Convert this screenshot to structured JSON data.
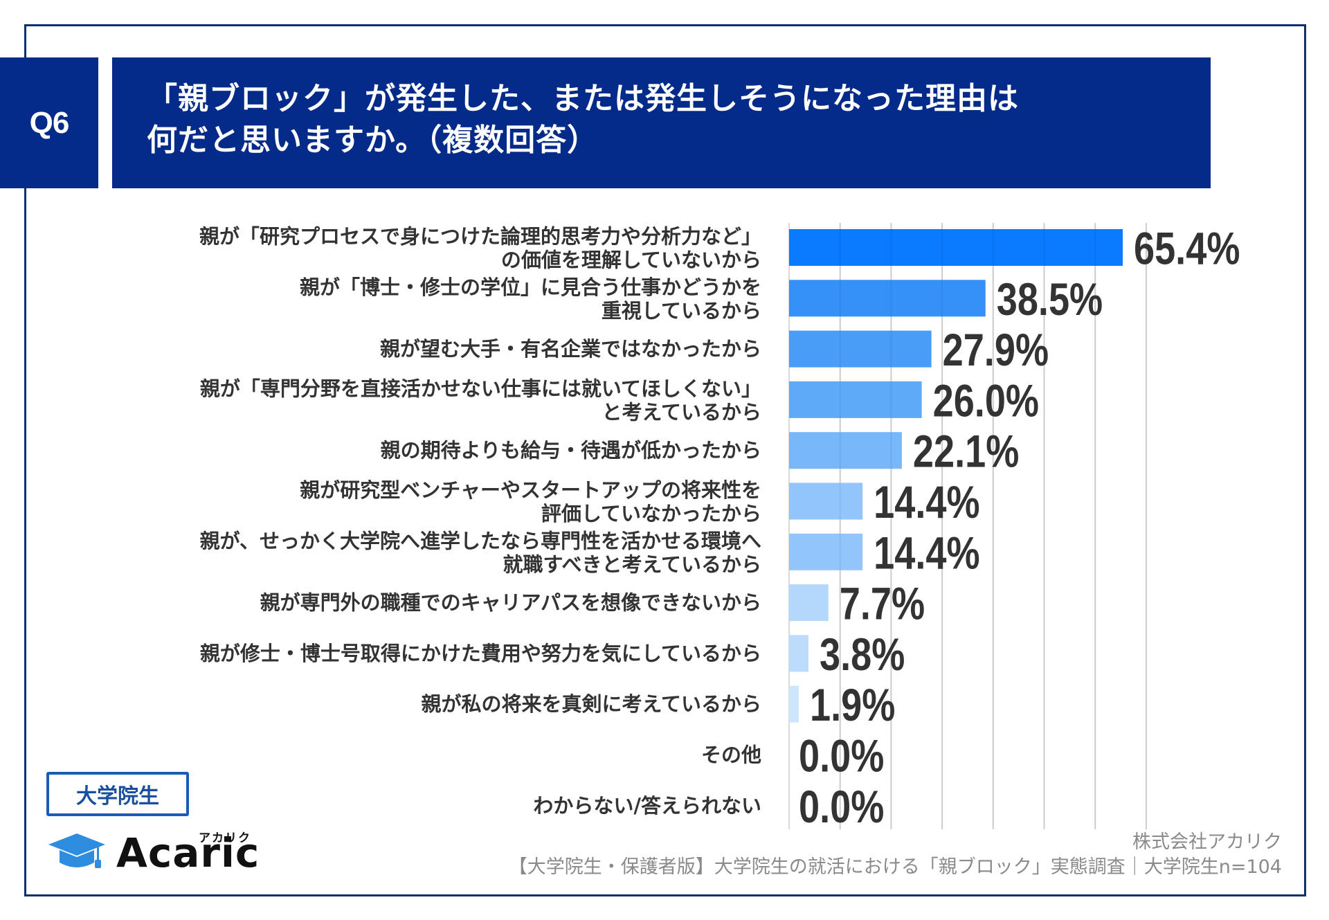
{
  "header": {
    "question_number": "Q6",
    "title_line1": "「親ブロック」が発生した、または発生しそうになった理由は",
    "title_line2": "何だと思いますか。（複数回答）"
  },
  "colors": {
    "header_bg": "#042b8a",
    "frame": "#10306a",
    "gridline": "#d9d9d9",
    "label_text": "#333333",
    "badge": "#1a5bb8",
    "logo_icon": "#2f8de0"
  },
  "chart_data": {
    "type": "bar",
    "orientation": "horizontal",
    "title": "「親ブロック」が発生した、または発生しそうになった理由は何だと思いますか。（複数回答）",
    "xlabel": "",
    "ylabel": "",
    "xlim": [
      0,
      70
    ],
    "grid": true,
    "grid_step": 10,
    "legend": "none",
    "unit": "%",
    "categories": [
      [
        "親が「研究プロセスで身につけた論理的思考力や分析力など」",
        "の価値を理解していないから"
      ],
      [
        "親が「博士・修士の学位」に見合う仕事かどうかを",
        "重視しているから"
      ],
      [
        "親が望む大手・有名企業ではなかったから"
      ],
      [
        "親が「専門分野を直接活かせない仕事には就いてほしくない」",
        "と考えているから"
      ],
      [
        "親の期待よりも給与・待遇が低かったから"
      ],
      [
        "親が研究型ベンチャーやスタートアップの将来性を",
        "評価していなかったから"
      ],
      [
        "親が、せっかく大学院へ進学したなら専門性を活かせる環境へ",
        "就職すべきと考えているから"
      ],
      [
        "親が専門外の職種でのキャリアパスを想像できないから"
      ],
      [
        "親が修士・博士号取得にかけた費用や努力を気にしているから"
      ],
      [
        "親が私の将来を真剣に考えているから"
      ],
      [
        "その他"
      ],
      [
        "わからない/答えられない"
      ]
    ],
    "values": [
      65.4,
      38.5,
      27.9,
      26.0,
      22.1,
      14.4,
      14.4,
      7.7,
      3.8,
      1.9,
      0.0,
      0.0
    ],
    "value_labels": [
      "65.4%",
      "38.5%",
      "27.9%",
      "26.0%",
      "22.1%",
      "14.4%",
      "14.4%",
      "7.7%",
      "3.8%",
      "1.9%",
      "0.0%",
      "0.0%"
    ],
    "bar_colors": [
      "#0a7aff",
      "#3591f7",
      "#4a9df7",
      "#5eaaf9",
      "#78b7fa",
      "#92c5fb",
      "#92c5fb",
      "#b4d8fc",
      "#bddcfc",
      "#cde5fd",
      "#dcecfe",
      "#dcecfe"
    ]
  },
  "badge": {
    "label": "大学院生"
  },
  "logo": {
    "name": "Acaric",
    "kana": "アカリク",
    "icon": "graduation-cap-icon"
  },
  "footer": {
    "company": "株式会社アカリク",
    "source": "【大学院生・保護者版】大学院生の就活における「親ブロック」実態調査｜大学院生n=104"
  }
}
